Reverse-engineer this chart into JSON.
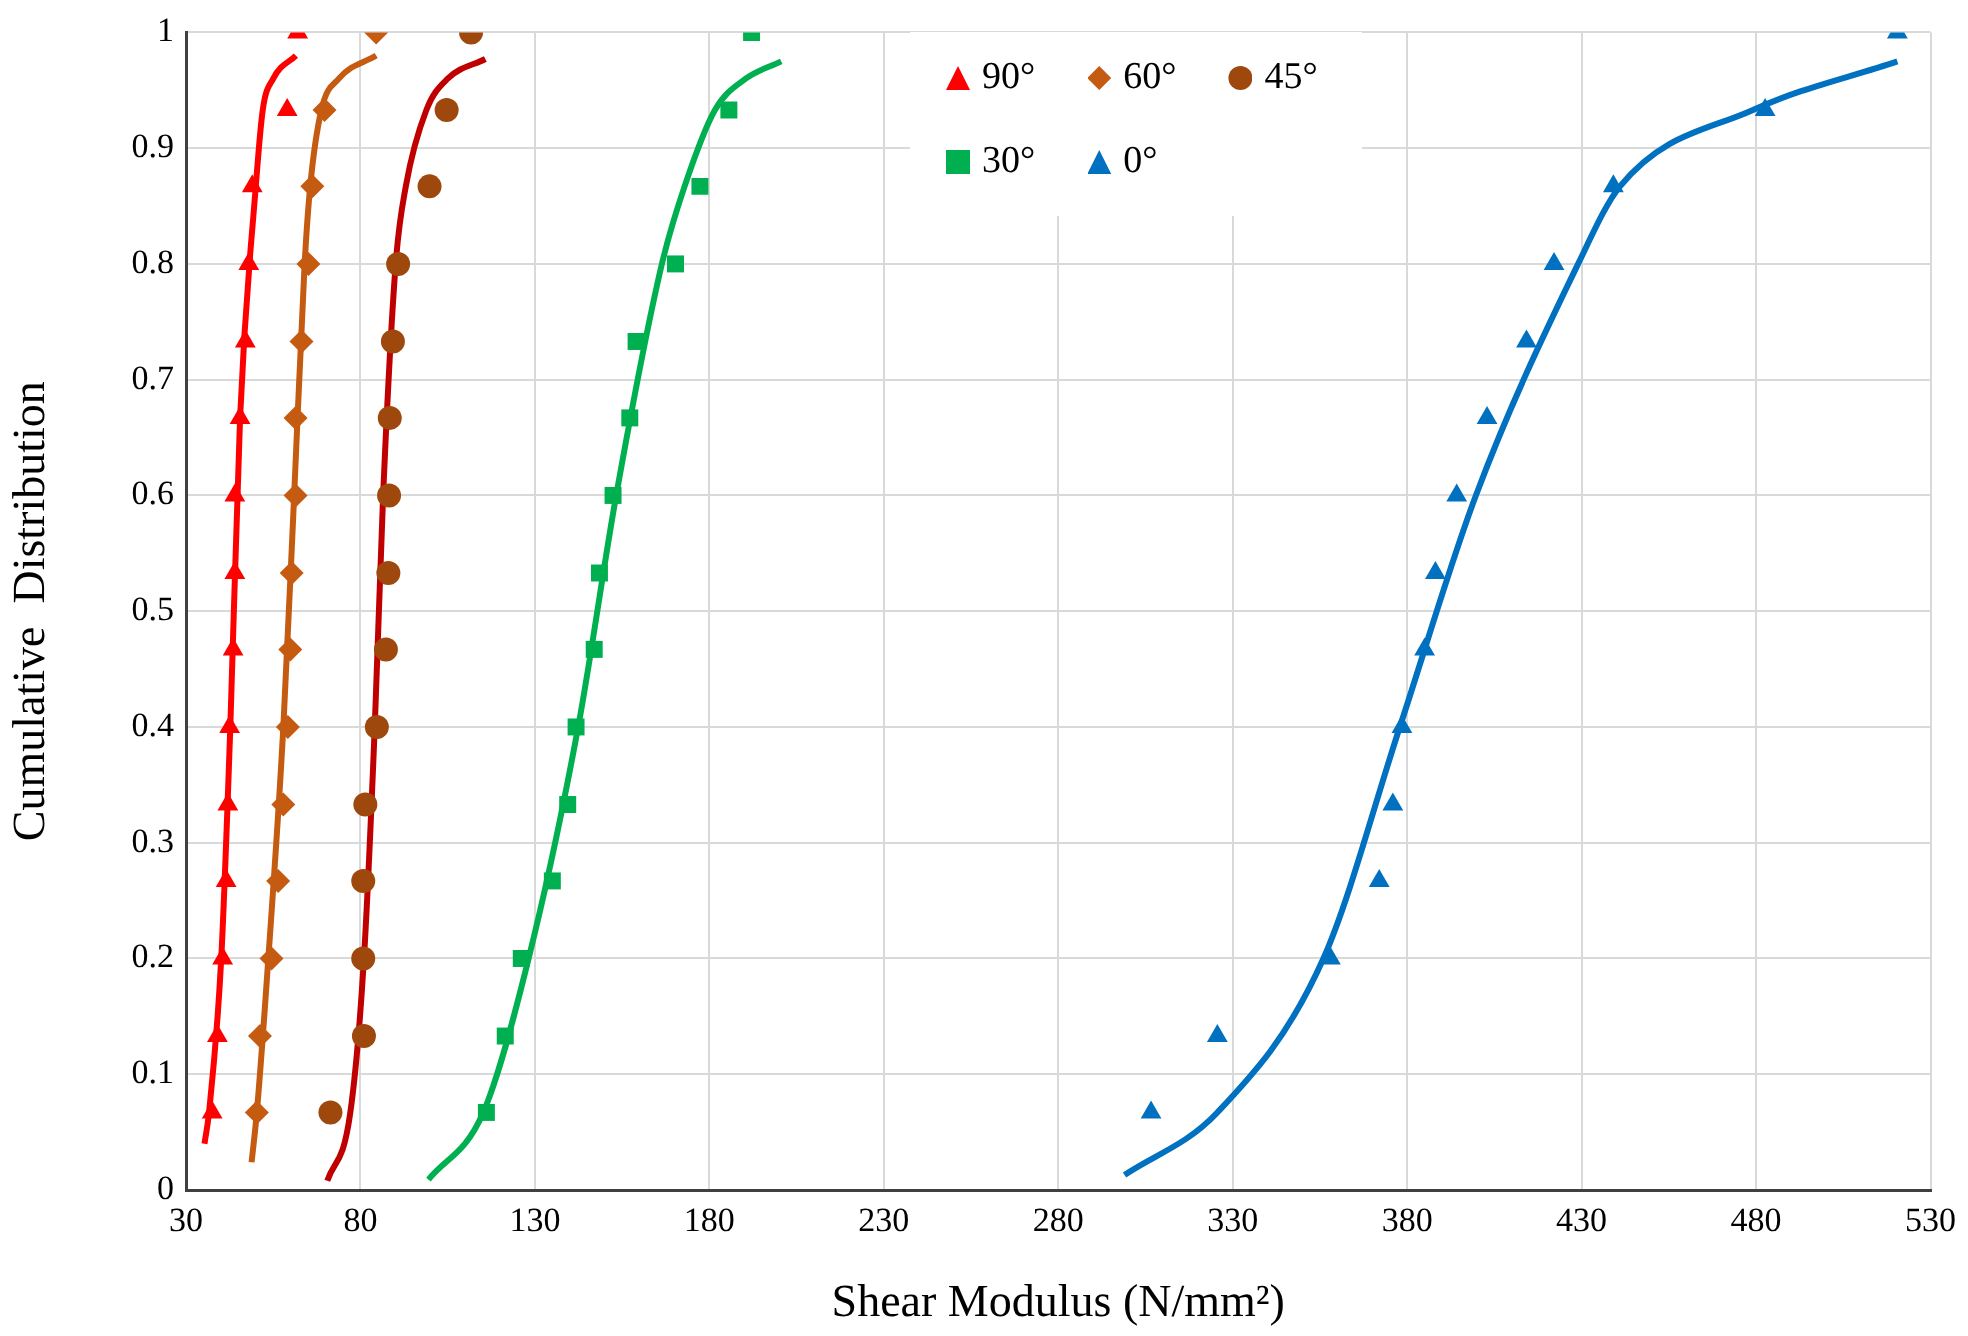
{
  "chart_data": {
    "type": "scatter",
    "xlabel": "Shear Modulus (N/mm²)",
    "ylabel": "Cumulative  Distribution",
    "xlim": [
      30,
      530
    ],
    "xticks": [
      30,
      80,
      130,
      180,
      230,
      280,
      330,
      380,
      430,
      480,
      530
    ],
    "ylim": [
      0,
      1
    ],
    "yticks": [
      0,
      0.1,
      0.2,
      0.3,
      0.4,
      0.5,
      0.6,
      0.7,
      0.8,
      0.9,
      1
    ],
    "grid": true,
    "legend": "top",
    "series": [
      {
        "name": "90°",
        "marker": "triangle",
        "color": "#ff0000",
        "x": [
          37.5,
          39,
          40.5,
          41.5,
          42,
          42.5,
          43.5,
          44,
          44,
          45.5,
          47,
          48,
          49,
          59,
          62
        ],
        "values": [
          0.067,
          0.133,
          0.2,
          0.267,
          0.333,
          0.4,
          0.467,
          0.533,
          0.6,
          0.667,
          0.733,
          0.8,
          0.867,
          0.933,
          1
        ]
      },
      {
        "name": "60°",
        "marker": "diamond",
        "color": "#c55a11",
        "x": [
          50.3,
          51.2,
          54.5,
          56.4,
          57.9,
          59.2,
          59.9,
          60.3,
          61.4,
          61.4,
          63.1,
          65.1,
          66.2,
          69.7,
          84.5
        ],
        "values": [
          0.067,
          0.133,
          0.2,
          0.267,
          0.333,
          0.4,
          0.467,
          0.533,
          0.6,
          0.667,
          0.733,
          0.8,
          0.867,
          0.933,
          1
        ]
      },
      {
        "name": "45°",
        "marker": "circle",
        "color": "#9e480e",
        "x": [
          71.4,
          81,
          80.8,
          80.8,
          81.4,
          84.7,
          87.3,
          88,
          88.2,
          88.4,
          89.3,
          90.8,
          99.8,
          104.7,
          111.7
        ],
        "values": [
          0.067,
          0.133,
          0.2,
          0.267,
          0.333,
          0.4,
          0.467,
          0.533,
          0.6,
          0.667,
          0.733,
          0.8,
          0.867,
          0.933,
          1
        ]
      },
      {
        "name": "30°",
        "marker": "square",
        "color": "#00b050",
        "x": [
          116.1,
          121.5,
          126.1,
          135,
          139.4,
          141.8,
          147,
          148.5,
          152.4,
          157.2,
          159,
          170.3,
          177.3,
          185.6,
          192.1
        ],
        "values": [
          0.067,
          0.133,
          0.2,
          0.267,
          0.333,
          0.4,
          0.467,
          0.533,
          0.6,
          0.667,
          0.733,
          0.8,
          0.867,
          0.933,
          1
        ]
      },
      {
        "name": "0°",
        "marker": "triangle",
        "color": "#0070c0",
        "x": [
          306.6,
          325.6,
          358,
          372,
          375.9,
          378.5,
          385,
          388.1,
          394.2,
          402.9,
          414.2,
          422.1,
          439.1,
          482.6,
          520.5
        ],
        "values": [
          0.067,
          0.133,
          0.2,
          0.267,
          0.333,
          0.4,
          0.467,
          0.533,
          0.6,
          0.667,
          0.733,
          0.8,
          0.867,
          0.933,
          1
        ]
      },
      {
        "type": "line",
        "color": "#ff0000",
        "x": [
          35.3,
          36.6,
          40.1,
          42.7,
          45.5,
          50,
          52,
          55,
          61.5
        ],
        "values": [
          0.04,
          0.067,
          0.2,
          0.4,
          0.667,
          0.867,
          0.933,
          0.96,
          0.98
        ]
      },
      {
        "type": "line",
        "color": "#c55a11",
        "x": [
          48.8,
          50.3,
          53.6,
          57.9,
          61,
          64,
          65.6,
          68.8,
          73.8,
          84.5
        ],
        "values": [
          0.024,
          0.067,
          0.2,
          0.4,
          0.6,
          0.8,
          0.867,
          0.933,
          0.96,
          0.98
        ]
      },
      {
        "type": "line",
        "color": "#c00000",
        "x": [
          70.5,
          77.1,
          81,
          84.1,
          86.5,
          90.1,
          93,
          98.9,
          105,
          115.8
        ],
        "values": [
          0.008,
          0.067,
          0.2,
          0.4,
          0.6,
          0.8,
          0.867,
          0.933,
          0.96,
          0.977
        ]
      },
      {
        "type": "line",
        "color": "#00b050",
        "x": [
          99.5,
          115.2,
          128.2,
          142.4,
          153.3,
          166.4,
          172.9,
          181.6,
          190.4,
          200.6
        ],
        "values": [
          0.009,
          0.067,
          0.2,
          0.4,
          0.6,
          0.8,
          0.867,
          0.933,
          0.96,
          0.975
        ]
      },
      {
        "type": "line",
        "color": "#0070c0",
        "x": [
          299,
          325.6,
          356,
          377.9,
          399.7,
          429,
          441,
          479.1,
          520.5
        ],
        "values": [
          0.013,
          0.067,
          0.2,
          0.4,
          0.6,
          0.8,
          0.867,
          0.933,
          0.975
        ]
      }
    ]
  }
}
